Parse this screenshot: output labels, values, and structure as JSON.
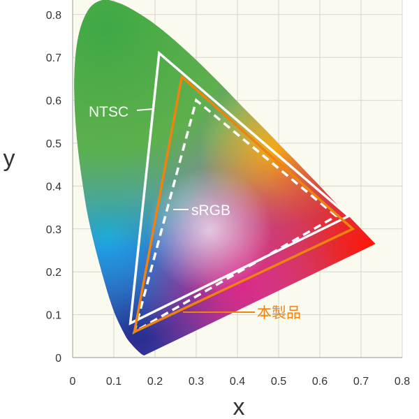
{
  "chart_data": {
    "type": "scatter",
    "title": "",
    "xlabel": "x",
    "ylabel": "y",
    "xlim": [
      0,
      0.8
    ],
    "ylim": [
      0,
      0.85
    ],
    "x_ticks": [
      "0",
      "0.1",
      "0.2",
      "0.3",
      "0.4",
      "0.5",
      "0.6",
      "0.7",
      "0.8"
    ],
    "y_ticks": [
      "0",
      "0.1",
      "0.2",
      "0.3",
      "0.4",
      "0.5",
      "0.6",
      "0.7",
      "0.8"
    ],
    "grid": true,
    "colors": {
      "plot_background": "#fbfaef",
      "grid": "#d6d6d0",
      "gamut_outline": "#ffffff",
      "product": "#ee8310",
      "label_text": "#ffffff"
    },
    "spectral_locus": [
      [
        0.174,
        0.005
      ],
      [
        0.166,
        0.009
      ],
      [
        0.144,
        0.03
      ],
      [
        0.124,
        0.058
      ],
      [
        0.091,
        0.133
      ],
      [
        0.045,
        0.295
      ],
      [
        0.023,
        0.413
      ],
      [
        0.008,
        0.538
      ],
      [
        0.004,
        0.655
      ],
      [
        0.014,
        0.75
      ],
      [
        0.039,
        0.812
      ],
      [
        0.074,
        0.834
      ],
      [
        0.114,
        0.826
      ],
      [
        0.155,
        0.806
      ],
      [
        0.193,
        0.782
      ],
      [
        0.23,
        0.754
      ],
      [
        0.266,
        0.724
      ],
      [
        0.302,
        0.692
      ],
      [
        0.337,
        0.659
      ],
      [
        0.373,
        0.624
      ],
      [
        0.408,
        0.589
      ],
      [
        0.444,
        0.554
      ],
      [
        0.479,
        0.52
      ],
      [
        0.512,
        0.487
      ],
      [
        0.545,
        0.455
      ],
      [
        0.575,
        0.425
      ],
      [
        0.602,
        0.398
      ],
      [
        0.627,
        0.372
      ],
      [
        0.648,
        0.351
      ],
      [
        0.666,
        0.334
      ],
      [
        0.68,
        0.32
      ],
      [
        0.692,
        0.308
      ],
      [
        0.735,
        0.265
      ]
    ],
    "series": [
      {
        "name": "NTSC",
        "style": "solid",
        "color": "#ffffff",
        "points": [
          [
            0.67,
            0.33
          ],
          [
            0.21,
            0.71
          ],
          [
            0.14,
            0.08
          ]
        ]
      },
      {
        "name": "sRGB",
        "style": "dashed",
        "color": "#ffffff",
        "points": [
          [
            0.64,
            0.33
          ],
          [
            0.3,
            0.6
          ],
          [
            0.15,
            0.06
          ]
        ]
      },
      {
        "name": "本製品",
        "style": "solid",
        "color": "#ee8310",
        "points": [
          [
            0.68,
            0.3
          ],
          [
            0.265,
            0.655
          ],
          [
            0.15,
            0.06
          ]
        ]
      }
    ]
  }
}
